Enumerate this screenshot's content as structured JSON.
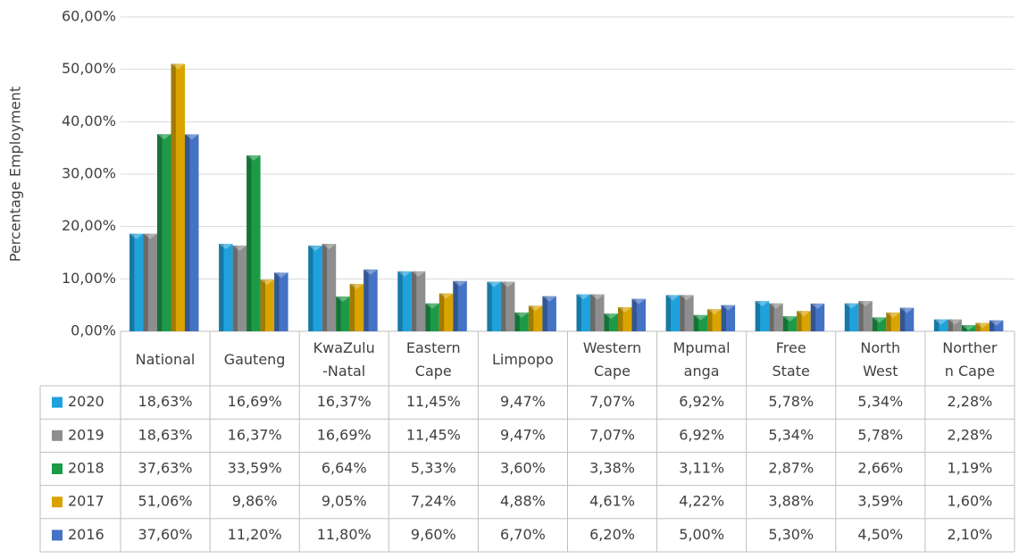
{
  "chart_data": {
    "type": "bar",
    "y_label": "Percentage Employment",
    "categories": [
      "National",
      "Gauteng",
      "KwaZulu\n-Natal",
      "Eastern\nCape",
      "Limpopo",
      "Western\nCape",
      "Mpumal\nanga",
      "Free\nState",
      "North\nWest",
      "Norther\nn Cape"
    ],
    "series": [
      {
        "name": "2020",
        "color": "#1fa2dc",
        "values": [
          18.63,
          16.69,
          16.37,
          11.45,
          9.47,
          7.07,
          6.92,
          5.78,
          5.34,
          2.28
        ],
        "value_labels": [
          "18,63%",
          "16,69%",
          "16,37%",
          "11,45%",
          "9,47%",
          "7,07%",
          "6,92%",
          "5,78%",
          "5,34%",
          "2,28%"
        ]
      },
      {
        "name": "2019",
        "color": "#8e8e8e",
        "values": [
          18.63,
          16.37,
          16.69,
          11.45,
          9.47,
          7.07,
          6.92,
          5.34,
          5.78,
          2.28
        ],
        "value_labels": [
          "18,63%",
          "16,37%",
          "16,69%",
          "11,45%",
          "9,47%",
          "7,07%",
          "6,92%",
          "5,34%",
          "5,78%",
          "2,28%"
        ]
      },
      {
        "name": "2018",
        "color": "#1c9a48",
        "values": [
          37.63,
          33.59,
          6.64,
          5.33,
          3.6,
          3.38,
          3.11,
          2.87,
          2.66,
          1.19
        ],
        "value_labels": [
          "37,63%",
          "33,59%",
          "6,64%",
          "5,33%",
          "3,60%",
          "3,38%",
          "3,11%",
          "2,87%",
          "2,66%",
          "1,19%"
        ]
      },
      {
        "name": "2017",
        "color": "#d9a400",
        "values": [
          51.06,
          9.86,
          9.05,
          7.24,
          4.88,
          4.61,
          4.22,
          3.88,
          3.59,
          1.6
        ],
        "value_labels": [
          "51,06%",
          "9,86%",
          "9,05%",
          "7,24%",
          "4,88%",
          "4,61%",
          "4,22%",
          "3,88%",
          "3,59%",
          "1,60%"
        ]
      },
      {
        "name": "2016",
        "color": "#4472c4",
        "values": [
          37.6,
          11.2,
          11.8,
          9.6,
          6.7,
          6.2,
          5.0,
          5.3,
          4.5,
          2.1
        ],
        "value_labels": [
          "37,60%",
          "11,20%",
          "11,80%",
          "9,60%",
          "6,70%",
          "6,20%",
          "5,00%",
          "5,30%",
          "4,50%",
          "2,10%"
        ]
      }
    ],
    "ylim": [
      0,
      60
    ],
    "yticks": [
      {
        "value": 0,
        "label": "0,00%"
      },
      {
        "value": 10,
        "label": "10,00%"
      },
      {
        "value": 20,
        "label": "20,00%"
      },
      {
        "value": 30,
        "label": "30,00%"
      },
      {
        "value": 40,
        "label": "40,00%"
      },
      {
        "value": 50,
        "label": "50,00%"
      },
      {
        "value": 60,
        "label": "60,00%"
      }
    ],
    "grid": true
  }
}
